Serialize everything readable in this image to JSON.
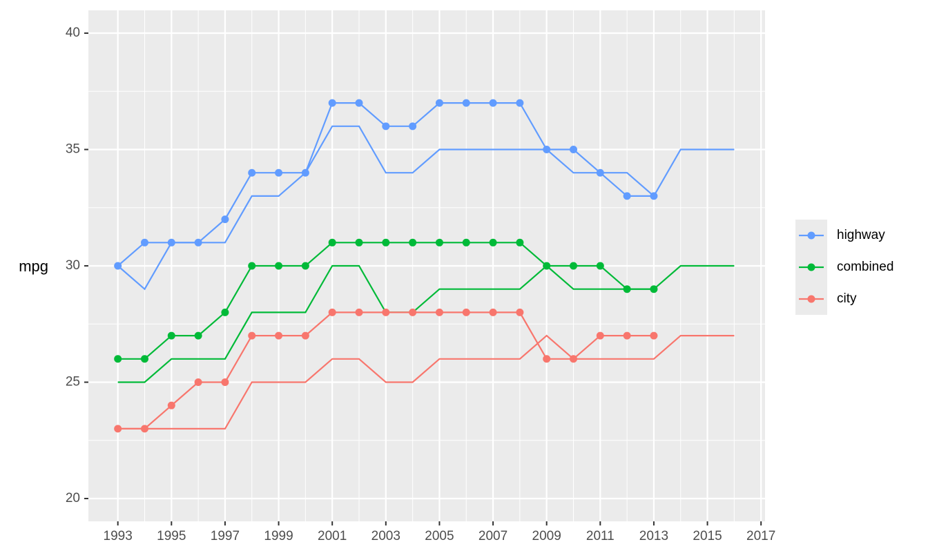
{
  "chart_data": {
    "type": "line",
    "ylabel": "mpg",
    "x": [
      1993,
      1994,
      1995,
      1996,
      1997,
      1998,
      1999,
      2000,
      2001,
      2002,
      2003,
      2004,
      2005,
      2006,
      2007,
      2008,
      2009,
      2010,
      2011,
      2012,
      2013,
      2014,
      2015,
      2016
    ],
    "series": [
      {
        "name": "highway",
        "color": "#619CFF",
        "values": [
          30,
          31,
          31,
          31,
          32,
          34,
          34,
          34,
          37,
          37,
          36,
          36,
          37,
          37,
          37,
          37,
          35,
          35,
          34,
          33,
          33,
          null,
          null,
          null
        ],
        "line_values": [
          30,
          29,
          31,
          31,
          31,
          33,
          33,
          34,
          36,
          36,
          34,
          34,
          35,
          35,
          35,
          35,
          35,
          34,
          34,
          34,
          33,
          35,
          35,
          35
        ]
      },
      {
        "name": "combined",
        "color": "#00BA38",
        "values": [
          26,
          26,
          27,
          27,
          28,
          30,
          30,
          30,
          31,
          31,
          31,
          31,
          31,
          31,
          31,
          31,
          30,
          30,
          30,
          29,
          29,
          null,
          null,
          null
        ],
        "line_values": [
          25,
          25,
          26,
          26,
          26,
          28,
          28,
          28,
          30,
          30,
          28,
          28,
          29,
          29,
          29,
          29,
          30,
          29,
          29,
          29,
          29,
          30,
          30,
          30
        ]
      },
      {
        "name": "city",
        "color": "#F8766D",
        "values": [
          23,
          23,
          24,
          25,
          25,
          27,
          27,
          27,
          28,
          28,
          28,
          28,
          28,
          28,
          28,
          28,
          26,
          26,
          27,
          27,
          27,
          null,
          null,
          null
        ],
        "line_values": [
          23,
          23,
          23,
          23,
          23,
          25,
          25,
          25,
          26,
          26,
          25,
          25,
          26,
          26,
          26,
          26,
          27,
          26,
          26,
          26,
          26,
          27,
          27,
          27
        ]
      }
    ],
    "xlim": [
      1991.9,
      2017.15
    ],
    "ylim": [
      19.02,
      40.98
    ],
    "xticks": [
      1993,
      1995,
      1997,
      1999,
      2001,
      2003,
      2005,
      2007,
      2009,
      2011,
      2013,
      2015,
      2017
    ],
    "yticks": [
      20,
      25,
      30,
      35,
      40
    ],
    "grid": true,
    "legend": "right"
  }
}
